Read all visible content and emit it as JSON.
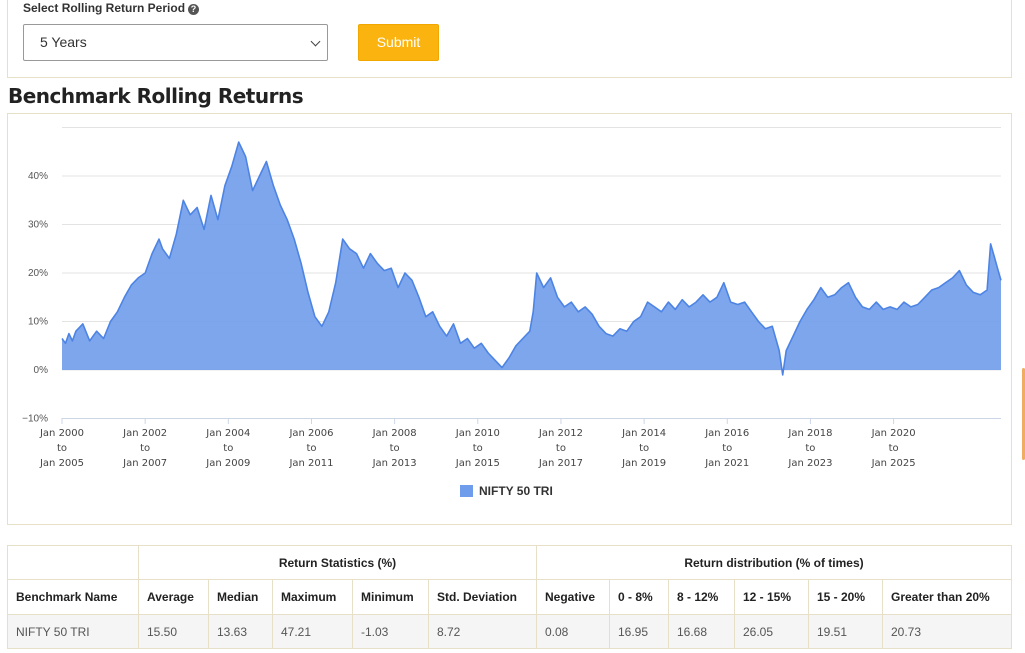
{
  "controls": {
    "period_label": "Select Rolling Return Period",
    "help_glyph": "?",
    "period_value": "5 Years",
    "submit_label": "Submit"
  },
  "section_title": "Benchmark Rolling Returns",
  "chart_data": {
    "type": "area",
    "title": "",
    "xlabel": "",
    "ylabel": "",
    "ylim": [
      -10,
      50
    ],
    "yticks": [
      -10,
      0,
      10,
      20,
      30,
      40
    ],
    "ytick_labels": [
      "−10%",
      "0%",
      "10%",
      "20%",
      "30%",
      "40%"
    ],
    "grid": true,
    "legend": "bottom-center",
    "x_start": "2000-02",
    "x_end": "2020-09",
    "xtick_positions": [
      "2000-02",
      "2002-02",
      "2004-02",
      "2006-02",
      "2008-02",
      "2010-02",
      "2012-02",
      "2014-02",
      "2016-02",
      "2018-02",
      "2020-02"
    ],
    "xtick_labels": [
      [
        "Jan 2000",
        "to",
        "Jan 2005"
      ],
      [
        "Jan 2002",
        "to",
        "Jan 2007"
      ],
      [
        "Jan 2004",
        "to",
        "Jan 2009"
      ],
      [
        "Jan 2006",
        "to",
        "Jan 2011"
      ],
      [
        "Jan 2008",
        "to",
        "Jan 2013"
      ],
      [
        "Jan 2010",
        "to",
        "Jan 2015"
      ],
      [
        "Jan 2012",
        "to",
        "Jan 2017"
      ],
      [
        "Jan 2014",
        "to",
        "Jan 2019"
      ],
      [
        "Jan 2016",
        "to",
        "Jan 2021"
      ],
      [
        "Jan 2018",
        "to",
        "Jan 2023"
      ],
      [
        "Jan 2020",
        "to",
        "Jan 2025"
      ]
    ],
    "series": [
      {
        "name": "NIFTY 50 TRI",
        "color": "#6f9ceb",
        "line_color": "#4d84e4",
        "points": [
          [
            "2000-02",
            6.5
          ],
          [
            "2000-03",
            5.5
          ],
          [
            "2000-04",
            7.5
          ],
          [
            "2000-05",
            6.0
          ],
          [
            "2000-06",
            8.0
          ],
          [
            "2000-08",
            9.5
          ],
          [
            "2000-10",
            6.0
          ],
          [
            "2000-12",
            8.0
          ],
          [
            "2001-02",
            6.5
          ],
          [
            "2001-04",
            10.0
          ],
          [
            "2001-06",
            12.0
          ],
          [
            "2001-08",
            15.0
          ],
          [
            "2001-10",
            17.5
          ],
          [
            "2001-12",
            19.0
          ],
          [
            "2002-02",
            20.0
          ],
          [
            "2002-04",
            24.0
          ],
          [
            "2002-06",
            27.0
          ],
          [
            "2002-07",
            25.0
          ],
          [
            "2002-09",
            23.0
          ],
          [
            "2002-11",
            28.0
          ],
          [
            "2003-01",
            35.0
          ],
          [
            "2003-03",
            32.0
          ],
          [
            "2003-05",
            33.5
          ],
          [
            "2003-07",
            29.0
          ],
          [
            "2003-09",
            36.0
          ],
          [
            "2003-11",
            31.0
          ],
          [
            "2004-01",
            38.0
          ],
          [
            "2004-03",
            42.0
          ],
          [
            "2004-05",
            47.0
          ],
          [
            "2004-07",
            44.0
          ],
          [
            "2004-09",
            37.0
          ],
          [
            "2004-11",
            40.0
          ],
          [
            "2005-01",
            43.0
          ],
          [
            "2005-03",
            38.0
          ],
          [
            "2005-05",
            34.0
          ],
          [
            "2005-07",
            31.0
          ],
          [
            "2005-09",
            27.0
          ],
          [
            "2005-11",
            22.0
          ],
          [
            "2006-01",
            16.0
          ],
          [
            "2006-03",
            11.0
          ],
          [
            "2006-05",
            9.0
          ],
          [
            "2006-07",
            12.0
          ],
          [
            "2006-09",
            18.0
          ],
          [
            "2006-11",
            27.0
          ],
          [
            "2007-01",
            25.0
          ],
          [
            "2007-03",
            24.0
          ],
          [
            "2007-05",
            21.0
          ],
          [
            "2007-07",
            24.0
          ],
          [
            "2007-09",
            22.0
          ],
          [
            "2007-11",
            20.5
          ],
          [
            "2008-01",
            21.0
          ],
          [
            "2008-03",
            17.0
          ],
          [
            "2008-05",
            20.0
          ],
          [
            "2008-07",
            18.5
          ],
          [
            "2008-09",
            15.0
          ],
          [
            "2008-11",
            11.0
          ],
          [
            "2009-01",
            12.0
          ],
          [
            "2009-03",
            9.0
          ],
          [
            "2009-05",
            7.0
          ],
          [
            "2009-07",
            9.5
          ],
          [
            "2009-09",
            5.5
          ],
          [
            "2009-11",
            6.5
          ],
          [
            "2010-01",
            4.5
          ],
          [
            "2010-03",
            5.5
          ],
          [
            "2010-05",
            3.5
          ],
          [
            "2010-07",
            2.0
          ],
          [
            "2010-09",
            0.5
          ],
          [
            "2010-11",
            2.5
          ],
          [
            "2011-01",
            5.0
          ],
          [
            "2011-03",
            6.5
          ],
          [
            "2011-05",
            8.0
          ],
          [
            "2011-06",
            12.0
          ],
          [
            "2011-07",
            20.0
          ],
          [
            "2011-09",
            17.0
          ],
          [
            "2011-11",
            19.0
          ],
          [
            "2012-01",
            15.0
          ],
          [
            "2012-03",
            13.0
          ],
          [
            "2012-05",
            14.0
          ],
          [
            "2012-07",
            12.0
          ],
          [
            "2012-09",
            13.0
          ],
          [
            "2012-11",
            11.5
          ],
          [
            "2013-01",
            9.0
          ],
          [
            "2013-03",
            7.5
          ],
          [
            "2013-05",
            7.0
          ],
          [
            "2013-07",
            8.5
          ],
          [
            "2013-09",
            8.0
          ],
          [
            "2013-11",
            10.0
          ],
          [
            "2014-01",
            11.0
          ],
          [
            "2014-03",
            14.0
          ],
          [
            "2014-05",
            13.0
          ],
          [
            "2014-07",
            12.0
          ],
          [
            "2014-09",
            14.0
          ],
          [
            "2014-11",
            12.5
          ],
          [
            "2015-01",
            14.5
          ],
          [
            "2015-03",
            13.0
          ],
          [
            "2015-05",
            14.0
          ],
          [
            "2015-07",
            15.5
          ],
          [
            "2015-09",
            14.0
          ],
          [
            "2015-11",
            15.0
          ],
          [
            "2016-01",
            18.0
          ],
          [
            "2016-03",
            14.0
          ],
          [
            "2016-05",
            13.5
          ],
          [
            "2016-07",
            14.0
          ],
          [
            "2016-09",
            12.0
          ],
          [
            "2016-11",
            10.0
          ],
          [
            "2017-01",
            8.5
          ],
          [
            "2017-03",
            9.0
          ],
          [
            "2017-05",
            4.0
          ],
          [
            "2017-06",
            -1.0
          ],
          [
            "2017-07",
            4.0
          ],
          [
            "2017-09",
            7.0
          ],
          [
            "2017-11",
            10.0
          ],
          [
            "2018-01",
            12.5
          ],
          [
            "2018-03",
            14.5
          ],
          [
            "2018-05",
            17.0
          ],
          [
            "2018-07",
            15.0
          ],
          [
            "2018-09",
            15.5
          ],
          [
            "2018-11",
            17.0
          ],
          [
            "2019-01",
            18.0
          ],
          [
            "2019-03",
            15.0
          ],
          [
            "2019-05",
            13.0
          ],
          [
            "2019-07",
            12.5
          ],
          [
            "2019-09",
            14.0
          ],
          [
            "2019-11",
            12.5
          ],
          [
            "2020-01",
            13.0
          ],
          [
            "2020-03",
            12.5
          ],
          [
            "2020-05",
            14.0
          ],
          [
            "2020-07",
            13.0
          ],
          [
            "2020-09",
            13.5
          ],
          [
            "2020-11",
            15.0
          ],
          [
            "2021-01",
            16.5
          ],
          [
            "2021-03",
            17.0
          ],
          [
            "2021-05",
            18.0
          ],
          [
            "2021-07",
            19.0
          ],
          [
            "2021-09",
            20.5
          ],
          [
            "2021-11",
            17.5
          ],
          [
            "2022-01",
            16.0
          ],
          [
            "2022-03",
            15.5
          ],
          [
            "2022-05",
            16.5
          ],
          [
            "2022-06",
            26.0
          ],
          [
            "2022-07",
            23.5
          ],
          [
            "2022-08",
            21.0
          ],
          [
            "2022-09",
            18.5
          ]
        ]
      }
    ]
  },
  "stats_table": {
    "group_return_stats": "Return Statistics (%)",
    "group_return_dist": "Return distribution (% of times)",
    "headers": [
      "Benchmark Name",
      "Average",
      "Median",
      "Maximum",
      "Minimum",
      "Std. Deviation",
      "Negative",
      "0 - 8%",
      "8 - 12%",
      "12 - 15%",
      "15 - 20%",
      "Greater than 20%"
    ],
    "rows": [
      [
        "NIFTY 50 TRI",
        "15.50",
        "13.63",
        "47.21",
        "-1.03",
        "8.72",
        "0.08",
        "16.95",
        "16.68",
        "26.05",
        "19.51",
        "20.73"
      ]
    ]
  }
}
